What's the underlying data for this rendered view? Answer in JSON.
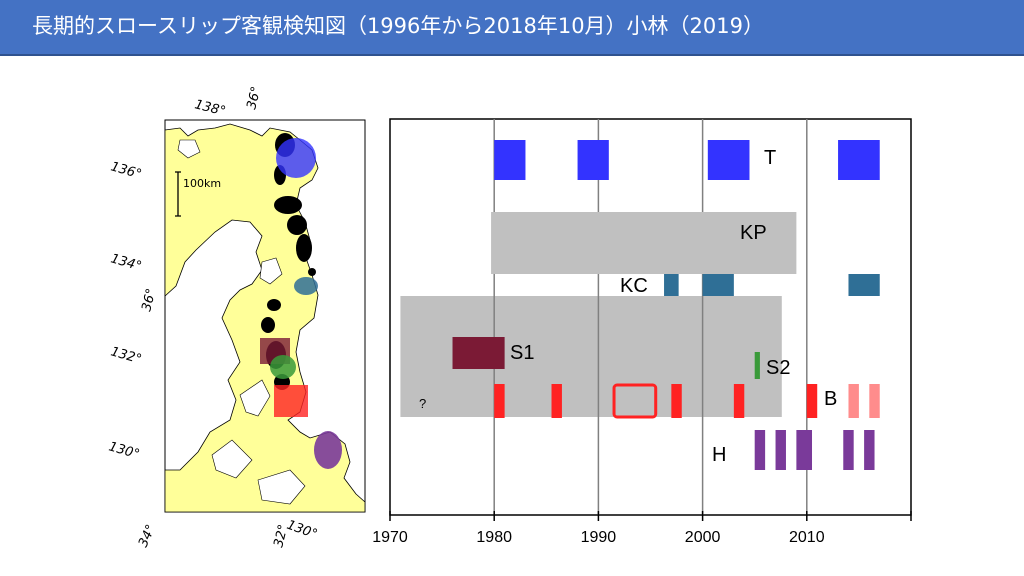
{
  "slide": {
    "title": "長期的スロースリップ客観検知図（1996年から2018年10月）小林（2019）"
  },
  "map": {
    "scale_label": "100km",
    "lon_labels": [
      "138°",
      "136°",
      "134°",
      "132°",
      "130°"
    ],
    "lat_labels": [
      "36°",
      "36°",
      "34°",
      "32°"
    ],
    "bottom_labels": [
      "130°",
      "32°",
      "34°"
    ]
  },
  "colors": {
    "land": "#ffff99",
    "T": "#3333ff",
    "KP": "#c0c0c0",
    "KC": "#2f6f96",
    "S1": "#7b1a35",
    "S2": "#3a9a3a",
    "B": "#ff2222",
    "B_light": "#ff8c8c",
    "H": "#7a3a9a"
  },
  "chart_data": {
    "type": "timeline",
    "x_ticks": [
      1970,
      1980,
      1990,
      2000,
      2010
    ],
    "xlim": [
      1970,
      2020
    ],
    "rows": [
      {
        "label": "T",
        "events": [
          [
            1980,
            1983
          ],
          [
            1988,
            1991
          ],
          [
            2000.5,
            2004.5
          ],
          [
            2013,
            2017
          ]
        ]
      },
      {
        "label": "KP",
        "events": [
          [
            1979.7,
            2009
          ]
        ]
      },
      {
        "label": "KC",
        "events": [
          [
            1996.3,
            1997.7
          ],
          [
            2000,
            2003
          ],
          [
            2014,
            2017
          ]
        ]
      },
      {
        "label": "S1",
        "events": [
          [
            1976,
            1981
          ]
        ]
      },
      {
        "label": "S2",
        "events": [
          [
            2005,
            2005.5
          ]
        ]
      },
      {
        "label": "B",
        "events": [
          [
            1980,
            1981
          ],
          [
            1985.5,
            1986.5
          ],
          [
            1991.5,
            1995.5
          ],
          [
            1997,
            1998
          ],
          [
            2003,
            2004
          ],
          [
            2010,
            2011
          ],
          [
            2014,
            2015
          ],
          [
            2016,
            2017
          ]
        ]
      },
      {
        "label": "H",
        "events": [
          [
            2005,
            2006
          ],
          [
            2007,
            2008
          ],
          [
            2009,
            2010.5
          ],
          [
            2013.5,
            2014.5
          ],
          [
            2015.5,
            2016.5
          ]
        ]
      }
    ],
    "background_band": {
      "range": [
        1971,
        2007.6
      ]
    },
    "annotation": "?"
  }
}
